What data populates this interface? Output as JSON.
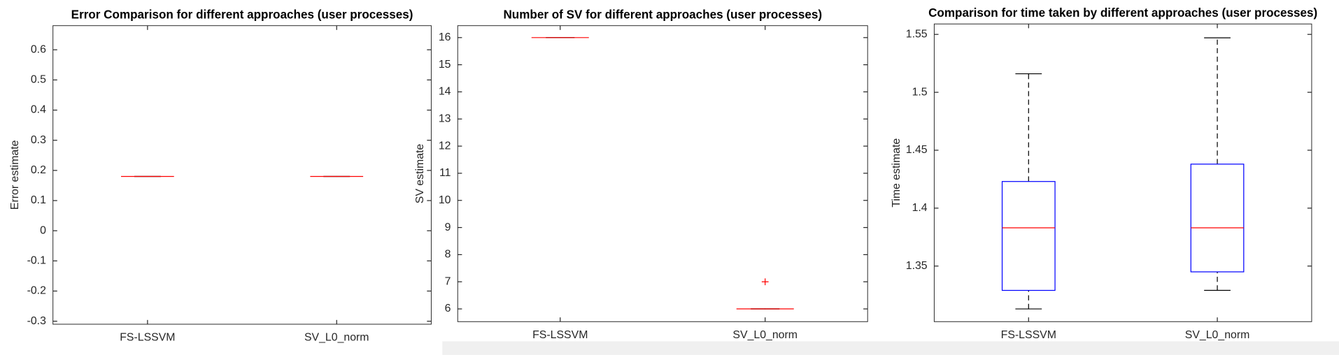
{
  "chart_data": [
    {
      "type": "box",
      "title": "Error Comparison for different approaches (user processes)",
      "y_label": "Error estimate",
      "categories": [
        "FS-LSSVM",
        "SV_L0_norm"
      ],
      "boxes": [
        {
          "min": 0.18,
          "q1": 0.18,
          "median": 0.18,
          "q3": 0.18,
          "max": 0.18,
          "outliers": []
        },
        {
          "min": 0.18,
          "q1": 0.18,
          "median": 0.18,
          "q3": 0.18,
          "max": 0.18,
          "outliers": []
        }
      ],
      "box_color": "#0000ff",
      "median_color": "#ff0000",
      "whisker_color": "#000000",
      "ylim": [
        -0.31,
        0.68
      ],
      "yticks": [
        -0.3,
        -0.2,
        -0.1,
        0,
        0.1,
        0.2,
        0.3,
        0.4,
        0.5,
        0.6
      ]
    },
    {
      "type": "box",
      "title": "Number of SV for different approaches (user processes)",
      "y_label": "SV estimate",
      "categories": [
        "FS-LSSVM",
        "SV_L0_norm"
      ],
      "boxes": [
        {
          "min": 16,
          "q1": 16,
          "median": 16,
          "q3": 16,
          "max": 16,
          "outliers": []
        },
        {
          "min": 6,
          "q1": 6,
          "median": 6,
          "q3": 6,
          "max": 6,
          "outliers": [
            7
          ]
        }
      ],
      "box_color": "#0000ff",
      "median_color": "#ff0000",
      "whisker_color": "#000000",
      "ylim": [
        5.53,
        16.44
      ],
      "yticks": [
        6,
        7,
        8,
        9,
        10,
        11,
        12,
        13,
        14,
        15,
        16
      ]
    },
    {
      "type": "box",
      "title": "Comparison for time taken by different approaches (user processes)",
      "y_label": "Time estimate",
      "categories": [
        "FS-LSSVM",
        "SV_L0_norm"
      ],
      "boxes": [
        {
          "min": 1.313,
          "q1": 1.329,
          "median": 1.383,
          "q3": 1.423,
          "max": 1.516,
          "outliers": []
        },
        {
          "min": 1.329,
          "q1": 1.345,
          "median": 1.383,
          "q3": 1.438,
          "max": 1.547,
          "outliers": []
        }
      ],
      "box_color": "#0000ff",
      "median_color": "#ff0000",
      "whisker_color": "#000000",
      "ylim": [
        1.302,
        1.559
      ],
      "yticks": [
        1.35,
        1.4,
        1.45,
        1.5,
        1.55
      ]
    }
  ]
}
